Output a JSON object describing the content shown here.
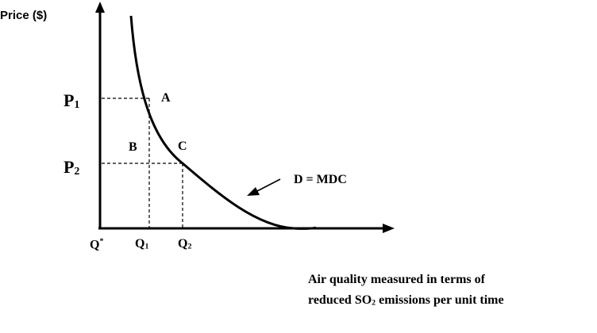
{
  "diagram": {
    "y_axis_label": "Price ($)",
    "price_1": {
      "main": "P",
      "sub": "1"
    },
    "price_2": {
      "main": "P",
      "sub": "2"
    },
    "point_a": "A",
    "point_b": "B",
    "point_c": "C",
    "curve_label": "D = MDC",
    "q_star": {
      "main": "Q",
      "sup": "*"
    },
    "q_1": {
      "main": "Q",
      "sub": "1"
    },
    "q_2": {
      "main": "Q",
      "sub": "2"
    },
    "x_axis_label_line1": "Air quality measured in terms of",
    "x_axis_label_line2": {
      "before": "reduced SO",
      "sub": "2",
      "after": " emissions per unit time"
    },
    "colors": {
      "ink": "#000000",
      "background": "#ffffff"
    }
  }
}
